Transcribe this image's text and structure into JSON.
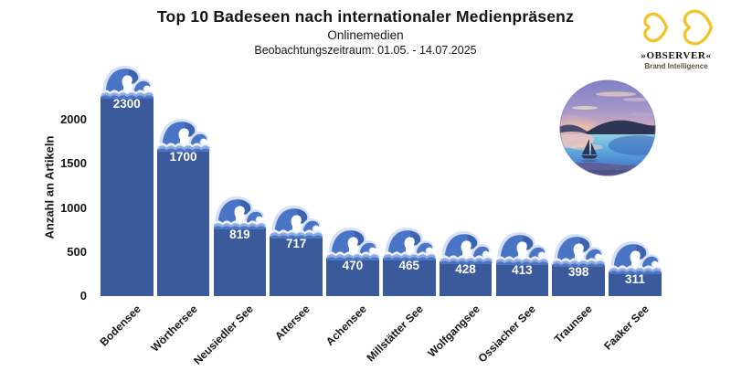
{
  "header": {
    "title": "Top 10 Badeseen nach internationaler Medienpräsenz",
    "subtitle": "Onlinemedien",
    "period": "Beobachtungszeitraum: 01.05. - 14.07.2025"
  },
  "brand": {
    "name": "»OBSERVER«",
    "tagline": "Brand Intelligence",
    "accent_color": "#f3c32a"
  },
  "chart_data": {
    "type": "bar",
    "title": "Top 10 Badeseen nach internationaler Medienpräsenz",
    "subtitle": "Onlinemedien",
    "annotation": "Beobachtungszeitraum: 01.05. - 14.07.2025",
    "categories": [
      "Bodensee",
      "Wörthersee",
      "Neusiedler See",
      "Attersee",
      "Achensee",
      "Millstätter See",
      "Wolfgangsee",
      "Ossiacher See",
      "Traunsee",
      "Faaker See"
    ],
    "values": [
      2300,
      1700,
      819,
      717,
      470,
      465,
      428,
      413,
      398,
      311
    ],
    "xlabel": "",
    "ylabel": "Anzahl an Artikeln",
    "yticks": [
      0,
      500,
      1000,
      1500,
      2000
    ],
    "ylim": [
      0,
      2400
    ],
    "grid": false,
    "legend": false,
    "bar_color": "#3b5a9b",
    "value_label_color": "#ffffff",
    "bar_icon": "ocean-wave-icon"
  }
}
